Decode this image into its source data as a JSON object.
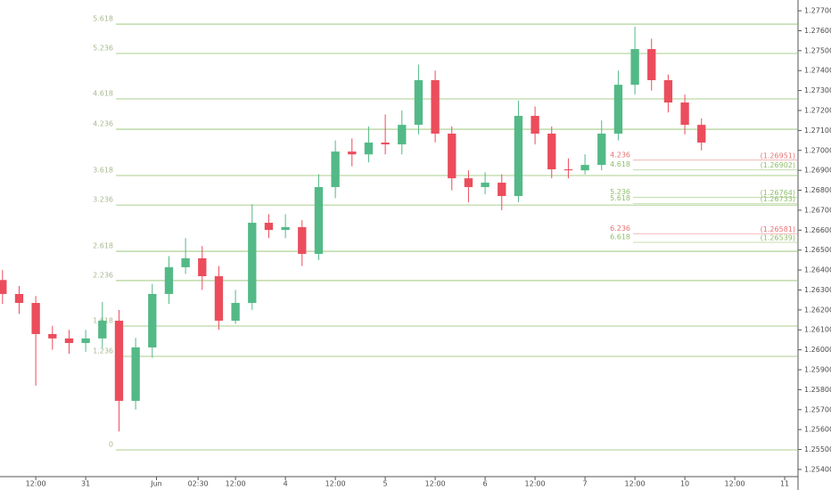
{
  "chart_data": {
    "type": "candlestick",
    "x": [
      -20,
      -16,
      -12,
      -8,
      -4,
      0,
      4,
      8,
      12,
      16,
      20,
      24,
      28,
      32,
      36,
      40,
      44,
      48,
      52,
      56,
      60,
      64,
      68,
      72,
      76,
      80,
      84,
      88,
      92,
      96,
      100,
      104,
      108,
      112,
      116,
      120,
      124,
      128,
      132,
      136,
      140,
      144,
      148
    ],
    "open": [
      1.2635,
      1.2628,
      1.26235,
      1.26079,
      1.26057,
      1.26034,
      1.26057,
      1.26146,
      1.25744,
      1.26012,
      1.2628,
      1.26414,
      1.26459,
      1.26369,
      1.26146,
      1.26235,
      1.26637,
      1.26601,
      1.26615,
      1.26481,
      1.26816,
      1.26994,
      1.2698,
      1.27039,
      1.2703,
      1.27128,
      1.27352,
      1.27084,
      1.2686,
      1.26816,
      1.26838,
      1.26771,
      1.27173,
      1.27084,
      1.26905,
      1.269,
      1.26927,
      1.27084,
      1.27329,
      1.27508,
      1.27352,
      1.2724,
      1.27128
    ],
    "high": [
      1.264,
      1.2632,
      1.2627,
      1.2612,
      1.261,
      1.261,
      1.2624,
      1.262,
      1.2606,
      1.2633,
      1.2647,
      1.2656,
      1.2652,
      1.2642,
      1.263,
      1.2673,
      1.2668,
      1.2668,
      1.2665,
      1.2688,
      1.2705,
      1.2706,
      1.2712,
      1.2718,
      1.272,
      1.2743,
      1.274,
      1.2712,
      1.269,
      1.2689,
      1.2688,
      1.2725,
      1.2722,
      1.2712,
      1.2696,
      1.2698,
      1.2715,
      1.274,
      1.2762,
      1.2756,
      1.2738,
      1.2728,
      1.2716
    ],
    "low": [
      1.2623,
      1.2618,
      1.2582,
      1.26,
      1.2598,
      1.2599,
      1.2601,
      1.2559,
      1.257,
      1.2596,
      1.2623,
      1.2638,
      1.263,
      1.261,
      1.2613,
      1.262,
      1.2656,
      1.2656,
      1.2642,
      1.2645,
      1.2676,
      1.2692,
      1.2694,
      1.2698,
      1.2698,
      1.2708,
      1.2704,
      1.268,
      1.2674,
      1.2678,
      1.267,
      1.2674,
      1.2703,
      1.2686,
      1.2686,
      1.2688,
      1.269,
      1.2705,
      1.2728,
      1.273,
      1.2719,
      1.2708,
      1.27
    ],
    "close": [
      1.2628,
      1.26235,
      1.26079,
      1.26057,
      1.26034,
      1.26057,
      1.26146,
      1.25744,
      1.26012,
      1.2628,
      1.26414,
      1.26459,
      1.26369,
      1.26146,
      1.26235,
      1.26637,
      1.26601,
      1.26615,
      1.26481,
      1.26816,
      1.26994,
      1.2698,
      1.27039,
      1.2703,
      1.27128,
      1.27352,
      1.27084,
      1.2686,
      1.26816,
      1.26838,
      1.26771,
      1.27173,
      1.27084,
      1.26905,
      1.269,
      1.26927,
      1.27084,
      1.27329,
      1.27508,
      1.27352,
      1.2724,
      1.27128,
      1.27039
    ],
    "up_color": "#53b987",
    "down_color": "#eb4d5c",
    "xlim": [
      -20.6,
      171.2
    ],
    "xticks": [
      {
        "value": -12,
        "label": "12:00"
      },
      {
        "value": 0,
        "label": "31"
      },
      {
        "value": 17,
        "label": "Jun"
      },
      {
        "value": 27,
        "label": "02:30"
      },
      {
        "value": 36,
        "label": "12:00"
      },
      {
        "value": 48,
        "label": "4"
      },
      {
        "value": 60,
        "label": "12:00"
      },
      {
        "value": 72,
        "label": "5"
      },
      {
        "value": 84,
        "label": "12:00"
      },
      {
        "value": 96,
        "label": "6"
      },
      {
        "value": 108,
        "label": "12:00"
      },
      {
        "value": 120,
        "label": "7"
      },
      {
        "value": 132,
        "label": "12:00"
      },
      {
        "value": 144,
        "label": "10"
      },
      {
        "value": 156,
        "label": "12:00"
      },
      {
        "value": 168,
        "label": "11"
      }
    ],
    "ylim": [
      1.25364,
      1.27754
    ],
    "yticks": [
      {
        "value": 1.277,
        "label": "1.27700"
      },
      {
        "value": 1.276,
        "label": "1.27600"
      },
      {
        "value": 1.275,
        "label": "1.27500"
      },
      {
        "value": 1.274,
        "label": "1.27400"
      },
      {
        "value": 1.273,
        "label": "1.27300"
      },
      {
        "value": 1.272,
        "label": "1.27200"
      },
      {
        "value": 1.271,
        "label": "1.27100"
      },
      {
        "value": 1.27,
        "label": "1.27000"
      },
      {
        "value": 1.269,
        "label": "1.26900"
      },
      {
        "value": 1.268,
        "label": "1.26800"
      },
      {
        "value": 1.267,
        "label": "1.26700"
      },
      {
        "value": 1.266,
        "label": "1.26600"
      },
      {
        "value": 1.265,
        "label": "1.26500"
      },
      {
        "value": 1.264,
        "label": "1.26400"
      },
      {
        "value": 1.263,
        "label": "1.26300"
      },
      {
        "value": 1.262,
        "label": "1.26200"
      },
      {
        "value": 1.261,
        "label": "1.26100"
      },
      {
        "value": 1.26,
        "label": "1.26000"
      },
      {
        "value": 1.259,
        "label": "1.25900"
      },
      {
        "value": 1.258,
        "label": "1.25800"
      },
      {
        "value": 1.257,
        "label": "1.25700"
      },
      {
        "value": 1.256,
        "label": "1.25600"
      },
      {
        "value": 1.255,
        "label": "1.25500"
      },
      {
        "value": 1.254,
        "label": "1.25400"
      }
    ],
    "fib_color": "#8fbf6a",
    "fib_left": [
      {
        "label": "5.618",
        "value": 1.27633
      },
      {
        "label": "5.236",
        "value": 1.27486
      },
      {
        "label": "4.618",
        "value": 1.27258
      },
      {
        "label": "4.236",
        "value": 1.27106
      },
      {
        "label": "3.618",
        "value": 1.26874
      },
      {
        "label": "3.236",
        "value": 1.26726
      },
      {
        "label": "2.618",
        "value": 1.26494
      },
      {
        "label": "2.236",
        "value": 1.26347
      },
      {
        "label": "1.618",
        "value": 1.26119
      },
      {
        "label": "1.236",
        "value": 1.25967
      },
      {
        "label": "0",
        "value": 1.25498
      }
    ],
    "fib_right": [
      {
        "label": "4.236",
        "value": 1.26951,
        "price_label": "(1.26951)",
        "color": "#e57373"
      },
      {
        "label": "4.618",
        "value": 1.26902,
        "price_label": "(1.26902)",
        "color": "#8fbf6a"
      },
      {
        "label": "5.236",
        "value": 1.26764,
        "price_label": "(1.26764)",
        "color": "#8fbf6a"
      },
      {
        "label": "5.618",
        "value": 1.26733,
        "price_label": "(1.26733)",
        "color": "#8fbf6a"
      },
      {
        "label": "6.236",
        "value": 1.26581,
        "price_label": "(1.26581)",
        "color": "#e57373"
      },
      {
        "label": "6.618",
        "value": 1.26539,
        "price_label": "(1.26539)",
        "color": "#8fbf6a"
      }
    ]
  }
}
